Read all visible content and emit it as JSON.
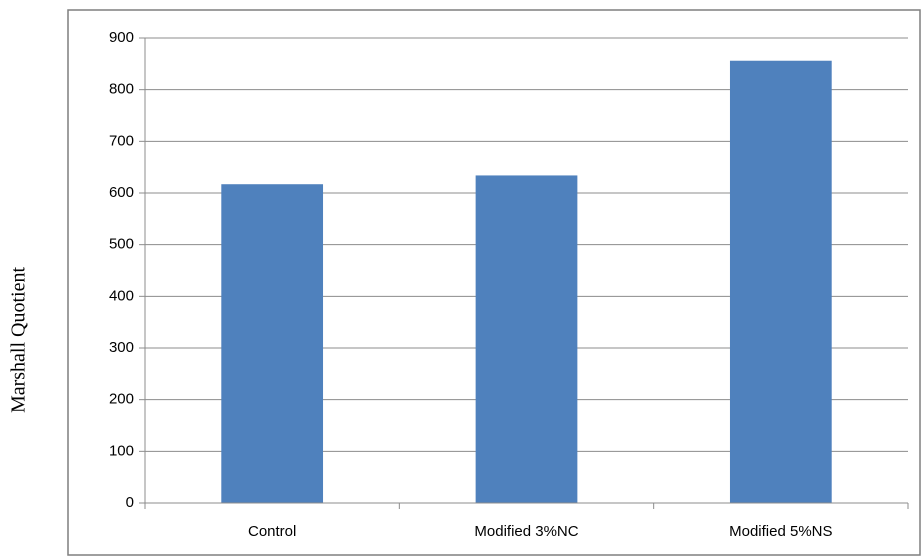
{
  "chart_data": {
    "type": "bar",
    "title": "",
    "xlabel": "",
    "ylabel": "Marshall Quotient",
    "categories": [
      "Control",
      "Modified 3%NC",
      "Modified 5%NS"
    ],
    "values": [
      617,
      634,
      856
    ],
    "ylim": [
      0,
      900
    ],
    "yticks": [
      0,
      100,
      200,
      300,
      400,
      500,
      600,
      700,
      800,
      900
    ],
    "grid": true,
    "legend": "none",
    "colors": {
      "bar": "#4f81bd",
      "gridline": "#8c8c8c",
      "axis": "#8c8c8c",
      "frame": "#7f7f7f"
    }
  }
}
